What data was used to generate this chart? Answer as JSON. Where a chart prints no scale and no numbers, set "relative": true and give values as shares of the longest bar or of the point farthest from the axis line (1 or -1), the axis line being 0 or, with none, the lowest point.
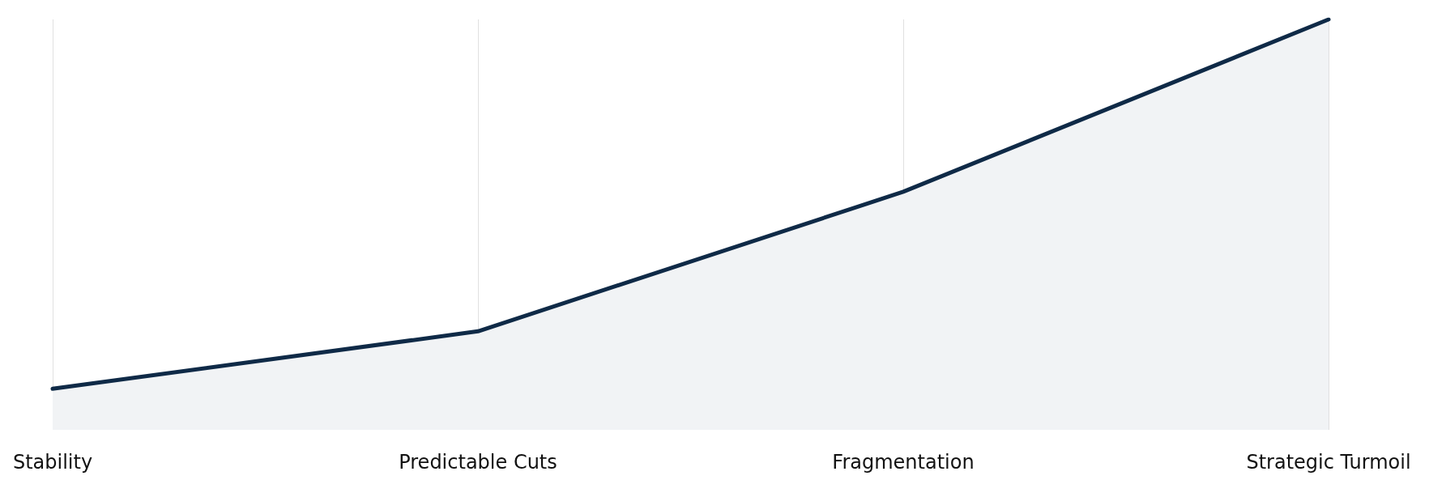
{
  "chart_data": {
    "type": "area",
    "relative": true,
    "categories": [
      "Stability",
      "Predictable Cuts",
      "Fragmentation",
      "Strategic Turmoil"
    ],
    "series": [
      {
        "color": "#0f2a47",
        "values": [
          0.1,
          0.24,
          0.58,
          1
        ]
      }
    ],
    "grid": "x",
    "marker": "none",
    "line_style": "solid"
  }
}
